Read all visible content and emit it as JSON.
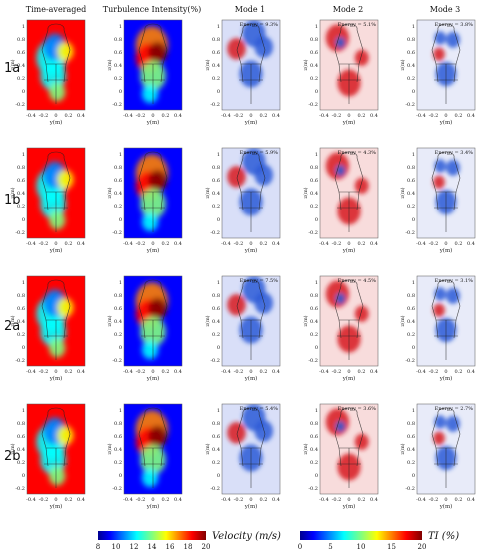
{
  "column_titles": [
    "Time-averaged",
    "Turbulence Intensity(%)",
    "Mode 1",
    "Mode 2",
    "Mode 3"
  ],
  "row_labels": [
    "1a",
    "1b",
    "2a",
    "2b"
  ],
  "axis": {
    "xlabel": "y(m)",
    "ylabel": "z(m)",
    "xticks": [
      "-0.4",
      "-0.2",
      "0",
      "0.2",
      "0.4"
    ],
    "yticks": [
      "1",
      "0.8",
      "0.6",
      "0.4",
      "0.2",
      "0",
      "-0.2"
    ]
  },
  "energies": [
    [
      "Energy = 9.3%",
      "Energy = 5.1%",
      "Energy = 3.8%"
    ],
    [
      "Energy = 5.9%",
      "Energy = 4.3%",
      "Energy = 3.4%"
    ],
    [
      "Energy = 7.5%",
      "Energy = 4.5%",
      "Energy = 3.1%"
    ],
    [
      "Energy = 5.4%",
      "Energy = 3.6%",
      "Energy = 2.7%"
    ]
  ],
  "velocity_colorbar": {
    "label": "Velocity (m/s)",
    "ticks": [
      "8",
      "10",
      "12",
      "14",
      "16",
      "18",
      "20"
    ]
  },
  "ti_colorbar": {
    "label": "TI (%)",
    "ticks": [
      "0",
      "5",
      "10",
      "15",
      "20"
    ]
  },
  "colors": {
    "jet": [
      "#00008f",
      "#0000ff",
      "#0080ff",
      "#00ffff",
      "#80ff80",
      "#ffff00",
      "#ff8000",
      "#ff0000",
      "#800000"
    ],
    "red": "#d7191c",
    "blue": "#2b5bd7"
  }
}
